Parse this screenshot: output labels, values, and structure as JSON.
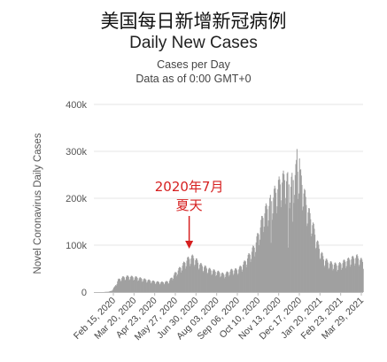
{
  "title_cn": "美国每日新增新冠病例",
  "chart_data": {
    "type": "bar",
    "title": "Daily New Cases",
    "subtitle_1": "Cases per Day",
    "subtitle_2": "Data as of 0:00 GMT+0",
    "ylabel": "Novel Coronavirus Daily Cases",
    "xlabel": "",
    "ylim": [
      0,
      400000
    ],
    "y_ticks": [
      {
        "value": 0,
        "label": "0"
      },
      {
        "value": 100000,
        "label": "100k"
      },
      {
        "value": 200000,
        "label": "200k"
      },
      {
        "value": 300000,
        "label": "300k"
      },
      {
        "value": 400000,
        "label": "400k"
      }
    ],
    "x_ticks": [
      "Feb 15, 2020",
      "Mar 20, 2020",
      "Apr 23, 2020",
      "May 27, 2020",
      "Jun 30, 2020",
      "Aug 03, 2020",
      "Sep 06, 2020",
      "Oct 10, 2020",
      "Nov 13, 2020",
      "Dec 17, 2020",
      "Jan 20, 2021",
      "Feb 23, 2021",
      "Mar 29, 2021"
    ],
    "x_start": "2020-02-15",
    "x_end": "2021-04-25",
    "bar_color": "#a0a0a0",
    "grid": true,
    "anchors": [
      [
        "2020-02-15",
        0
      ],
      [
        "2020-03-01",
        0
      ],
      [
        "2020-03-10",
        800
      ],
      [
        "2020-03-15",
        3000
      ],
      [
        "2020-03-20",
        12000
      ],
      [
        "2020-03-25",
        25000
      ],
      [
        "2020-04-01",
        30000
      ],
      [
        "2020-04-10",
        32000
      ],
      [
        "2020-04-24",
        30000
      ],
      [
        "2020-05-10",
        25000
      ],
      [
        "2020-05-25",
        21000
      ],
      [
        "2020-06-05",
        20000
      ],
      [
        "2020-06-15",
        22000
      ],
      [
        "2020-06-25",
        38000
      ],
      [
        "2020-07-05",
        52000
      ],
      [
        "2020-07-15",
        67000
      ],
      [
        "2020-07-24",
        72000
      ],
      [
        "2020-08-05",
        56000
      ],
      [
        "2020-08-20",
        46000
      ],
      [
        "2020-09-05",
        40000
      ],
      [
        "2020-09-12",
        36000
      ],
      [
        "2020-09-25",
        45000
      ],
      [
        "2020-10-05",
        46000
      ],
      [
        "2020-10-15",
        60000
      ],
      [
        "2020-10-25",
        80000
      ],
      [
        "2020-11-01",
        95000
      ],
      [
        "2020-11-08",
        125000
      ],
      [
        "2020-11-15",
        160000
      ],
      [
        "2020-11-24",
        180000
      ],
      [
        "2020-12-02",
        200000
      ],
      [
        "2020-12-12",
        225000
      ],
      [
        "2020-12-20",
        235000
      ],
      [
        "2020-12-29",
        220000
      ],
      [
        "2021-01-08",
        255000
      ],
      [
        "2021-01-15",
        230000
      ],
      [
        "2021-01-25",
        170000
      ],
      [
        "2021-02-01",
        145000
      ],
      [
        "2021-02-10",
        100000
      ],
      [
        "2021-02-20",
        68000
      ],
      [
        "2021-03-01",
        60000
      ],
      [
        "2021-03-15",
        55000
      ],
      [
        "2021-03-25",
        62000
      ],
      [
        "2021-04-05",
        68000
      ],
      [
        "2021-04-15",
        72000
      ],
      [
        "2021-04-25",
        62000
      ]
    ],
    "spikes": [
      [
        "2020-11-27",
        105000
      ],
      [
        "2020-12-25",
        95000
      ],
      [
        "2021-01-01",
        150000
      ],
      [
        "2021-01-08",
        305000
      ],
      [
        "2021-01-12",
        285000
      ]
    ],
    "annotations": [
      {
        "text_line1": "2020年7月",
        "text_line2": "夏天",
        "date": "2020-07-18",
        "color": "#d62020"
      }
    ]
  }
}
